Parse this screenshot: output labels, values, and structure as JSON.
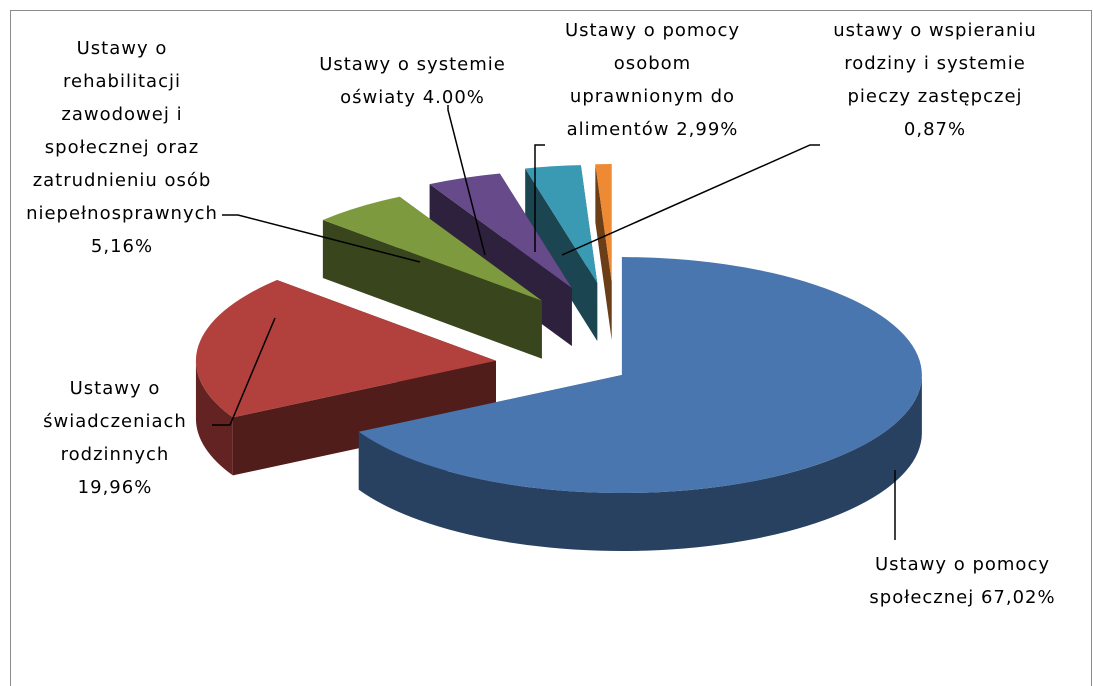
{
  "chart_data": {
    "type": "pie3d",
    "categories": [
      "Ustawy o pomocy społecznej",
      "Ustawy o świadczeniach rodzinnych",
      "Ustawy o rehabilitacji zawodowej i społecznej oraz zatrudnieniu osób niepełnosprawnych",
      "Ustawy o systemie oświaty",
      "Ustawy o pomocy osobom uprawnionym do alimentów",
      "ustawy o wspieraniu rodziny i systemie pieczy zastępczej"
    ],
    "values": [
      67.02,
      19.96,
      5.16,
      4.0,
      2.99,
      0.87
    ],
    "value_labels": [
      "67,02%",
      "19,96%",
      "5,16%",
      "4.00%",
      "2,99%",
      "0,87%"
    ],
    "colors": [
      "#4a76b0",
      "#b2403d",
      "#7e9a3f",
      "#664a8a",
      "#3a9ab3",
      "#ee8a33"
    ]
  }
}
